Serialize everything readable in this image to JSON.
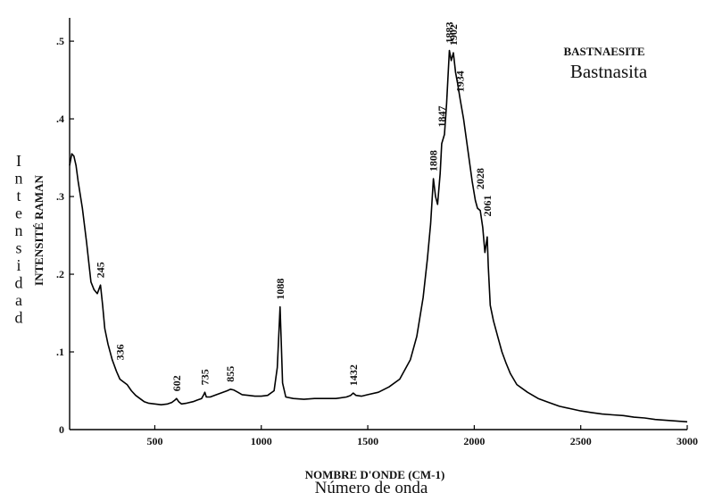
{
  "chart_data": {
    "type": "line",
    "title": "BASTNAESITE",
    "subtitle": "Bastnasita",
    "xlabel": "NOMBRE D'ONDE (CM-1)",
    "xlabel_2": "Número de onda",
    "ylabel": "INTENSITÉ RAMAN",
    "ylabel_2": "Intensidad",
    "xlim": [
      100,
      3000
    ],
    "ylim": [
      0,
      0.53
    ],
    "x_ticks": [
      500,
      1000,
      1500,
      2000,
      2500,
      3000
    ],
    "x_tick_labels": [
      "500",
      "1000",
      "1500",
      "2000",
      "2500",
      "3000"
    ],
    "y_ticks": [
      0.1,
      0.2,
      0.3,
      0.4,
      0.5
    ],
    "y_tick_labels": [
      ".1",
      ".2",
      ".3",
      ".4",
      ".5"
    ],
    "y_zero_label": "0",
    "grid": false,
    "legend": "none",
    "series": [
      {
        "color": "#000000",
        "x": [
          100,
          110,
          120,
          130,
          140,
          160,
          180,
          200,
          215,
          230,
          245,
          255,
          265,
          280,
          300,
          320,
          336,
          350,
          370,
          390,
          410,
          430,
          450,
          470,
          500,
          530,
          560,
          580,
          595,
          602,
          612,
          625,
          650,
          680,
          700,
          720,
          730,
          735,
          742,
          760,
          790,
          820,
          840,
          855,
          870,
          890,
          910,
          940,
          970,
          1000,
          1030,
          1060,
          1075,
          1082,
          1088,
          1094,
          1100,
          1115,
          1150,
          1200,
          1250,
          1300,
          1350,
          1400,
          1420,
          1432,
          1445,
          1470,
          1500,
          1550,
          1600,
          1650,
          1700,
          1730,
          1760,
          1780,
          1795,
          1808,
          1818,
          1828,
          1840,
          1847,
          1860,
          1870,
          1883,
          1892,
          1902,
          1912,
          1922,
          1934,
          1950,
          1970,
          1990,
          2005,
          2015,
          2028,
          2040,
          2050,
          2061,
          2066,
          2075,
          2090,
          2110,
          2130,
          2150,
          2170,
          2200,
          2250,
          2300,
          2350,
          2400,
          2450,
          2500,
          2550,
          2600,
          2650,
          2700,
          2750,
          2800,
          2850,
          2900,
          2950,
          3000
        ],
        "y": [
          0.34,
          0.355,
          0.352,
          0.34,
          0.32,
          0.285,
          0.24,
          0.19,
          0.18,
          0.175,
          0.186,
          0.16,
          0.13,
          0.11,
          0.09,
          0.075,
          0.065,
          0.062,
          0.058,
          0.05,
          0.044,
          0.04,
          0.036,
          0.034,
          0.033,
          0.032,
          0.033,
          0.035,
          0.038,
          0.04,
          0.036,
          0.033,
          0.034,
          0.036,
          0.038,
          0.04,
          0.045,
          0.048,
          0.042,
          0.042,
          0.045,
          0.048,
          0.05,
          0.052,
          0.051,
          0.048,
          0.045,
          0.044,
          0.043,
          0.043,
          0.044,
          0.05,
          0.08,
          0.12,
          0.158,
          0.11,
          0.06,
          0.042,
          0.04,
          0.039,
          0.04,
          0.04,
          0.04,
          0.042,
          0.044,
          0.047,
          0.044,
          0.043,
          0.045,
          0.048,
          0.055,
          0.065,
          0.09,
          0.12,
          0.17,
          0.22,
          0.265,
          0.323,
          0.3,
          0.29,
          0.33,
          0.368,
          0.38,
          0.42,
          0.488,
          0.475,
          0.485,
          0.46,
          0.445,
          0.425,
          0.4,
          0.36,
          0.32,
          0.295,
          0.285,
          0.282,
          0.26,
          0.228,
          0.248,
          0.21,
          0.16,
          0.14,
          0.12,
          0.1,
          0.085,
          0.072,
          0.058,
          0.048,
          0.04,
          0.035,
          0.03,
          0.027,
          0.024,
          0.022,
          0.02,
          0.019,
          0.018,
          0.016,
          0.015,
          0.013,
          0.012,
          0.011,
          0.01
        ]
      }
    ],
    "annotations": [
      {
        "label": "245",
        "x": 245,
        "y": 0.186
      },
      {
        "label": "336",
        "x": 336,
        "y": 0.08
      },
      {
        "label": "602",
        "x": 602,
        "y": 0.04
      },
      {
        "label": "735",
        "x": 735,
        "y": 0.048
      },
      {
        "label": "855",
        "x": 855,
        "y": 0.052
      },
      {
        "label": "1088",
        "x": 1088,
        "y": 0.158
      },
      {
        "label": "1432",
        "x": 1432,
        "y": 0.047
      },
      {
        "label": "1808",
        "x": 1808,
        "y": 0.323
      },
      {
        "label": "1847",
        "x": 1847,
        "y": 0.38
      },
      {
        "label": "1883",
        "x": 1883,
        "y": 0.488
      },
      {
        "label": "1902",
        "x": 1902,
        "y": 0.485
      },
      {
        "label": "1934",
        "x": 1934,
        "y": 0.425
      },
      {
        "label": "2028",
        "x": 2028,
        "y": 0.3
      },
      {
        "label": "2061",
        "x": 2061,
        "y": 0.265
      }
    ]
  }
}
